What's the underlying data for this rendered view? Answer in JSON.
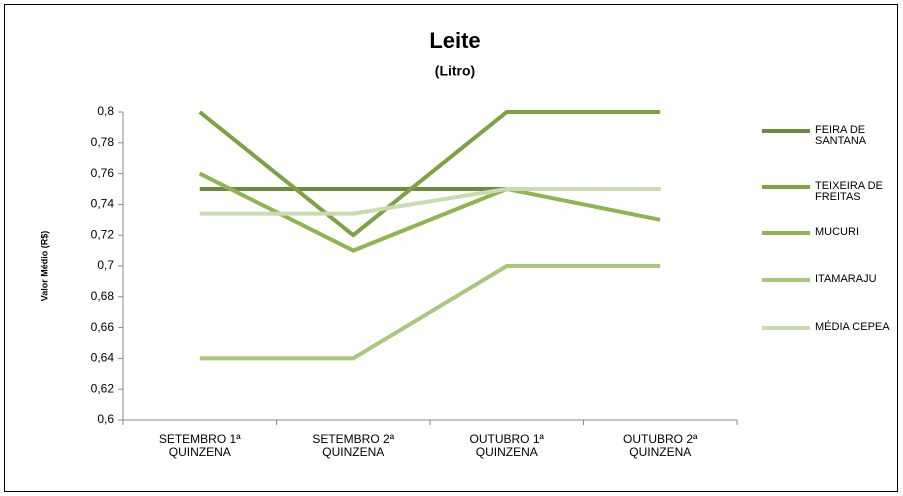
{
  "chart_data": {
    "type": "line",
    "title": "Leite",
    "subtitle": "(Litro)",
    "y_label": "Valor Médio (R$)",
    "categories": [
      "SETEMBRO 1ª QUINZENA",
      "SETEMBRO 2ª QUINZENA",
      "OUTUBRO 1ª QUINZENA",
      "OUTUBRO 2ª QUINZENA"
    ],
    "series": [
      {
        "name": "FEIRA DE SANTANA",
        "color": "#6b8c3c",
        "values": [
          0.75,
          0.75,
          0.75,
          0.75
        ]
      },
      {
        "name": "TEIXEIRA DE FREITAS",
        "color": "#7ea243",
        "values": [
          0.8,
          0.72,
          0.8,
          0.8
        ]
      },
      {
        "name": "MUCURI",
        "color": "#8fb54e",
        "values": [
          0.76,
          0.71,
          0.75,
          0.73
        ]
      },
      {
        "name": "ITAMARAJU",
        "color": "#aac67f",
        "values": [
          0.64,
          0.64,
          0.7,
          0.7
        ]
      },
      {
        "name": "MÉDIA CEPEA",
        "color": "#c9dbb2",
        "values": [
          0.734,
          0.734,
          0.75,
          0.75
        ]
      }
    ],
    "ylim": [
      0.6,
      0.8
    ],
    "yticks": [
      {
        "value": 0.6,
        "label": "0,6"
      },
      {
        "value": 0.62,
        "label": "0,62"
      },
      {
        "value": 0.64,
        "label": "0,64"
      },
      {
        "value": 0.66,
        "label": "0,66"
      },
      {
        "value": 0.68,
        "label": "0,68"
      },
      {
        "value": 0.7,
        "label": "0,7"
      },
      {
        "value": 0.72,
        "label": "0,72"
      },
      {
        "value": 0.74,
        "label": "0,74"
      },
      {
        "value": 0.76,
        "label": "0,76"
      },
      {
        "value": 0.78,
        "label": "0,78"
      },
      {
        "value": 0.8,
        "label": "0,8"
      }
    ],
    "legend": "right"
  }
}
